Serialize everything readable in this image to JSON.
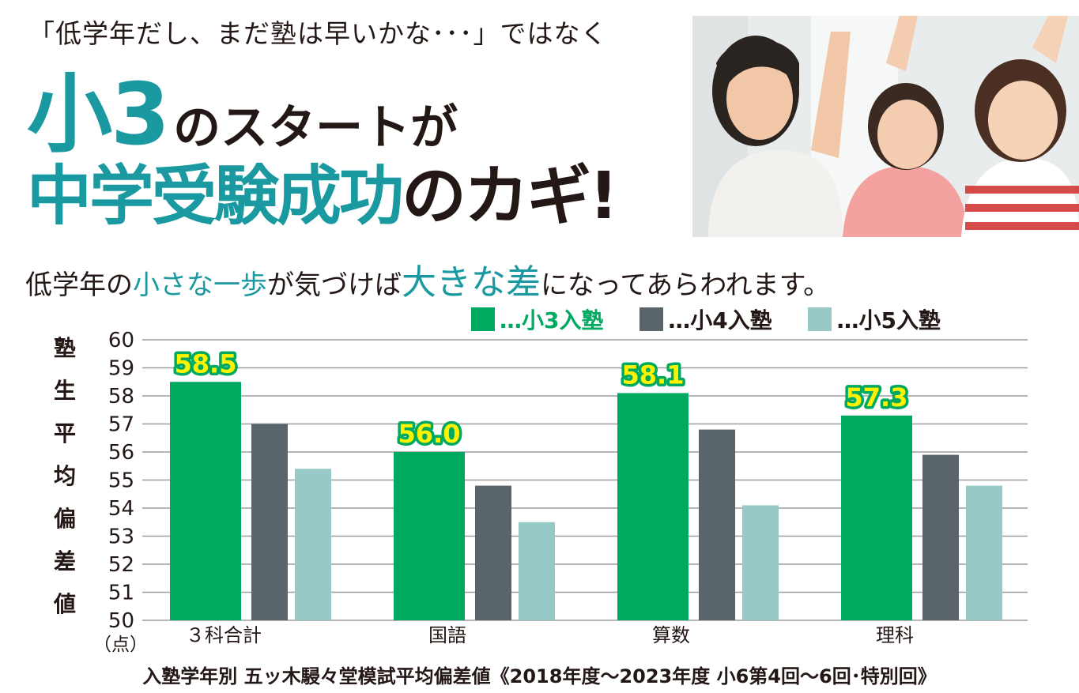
{
  "header": {
    "tagline": "「低学年だし、まだ塾は早いかな･･･」ではなく",
    "headline_line1_big": "小3",
    "headline_line1_rest": "のスタートが",
    "headline_line2_teal": "中学受験成功",
    "headline_line2_dark": "のカギ!",
    "sub_1": "低学年の",
    "sub_2": "小さな一歩",
    "sub_3": "が気づけば",
    "sub_4": "大きな差",
    "sub_5": "になってあらわれます。"
  },
  "colors": {
    "accent": "#1a9aa0",
    "series": [
      "#00a960",
      "#5a646b",
      "#97c9c6"
    ],
    "value_label_fill": "#fff200"
  },
  "legend": [
    {
      "label": "…小3入塾"
    },
    {
      "label": "…小4入塾"
    },
    {
      "label": "…小5入塾"
    }
  ],
  "chart_data": {
    "type": "bar",
    "ylabel": "塾生平均偏差値",
    "unit": "（点）",
    "categories": [
      "３科合計",
      "国語",
      "算数",
      "理科"
    ],
    "series": [
      {
        "name": "小3入塾",
        "values": [
          58.5,
          56.0,
          58.1,
          57.3
        ]
      },
      {
        "name": "小4入塾",
        "values": [
          57.0,
          54.8,
          56.8,
          55.9
        ]
      },
      {
        "name": "小5入塾",
        "values": [
          55.4,
          53.5,
          54.1,
          54.8
        ]
      }
    ],
    "data_labels": [
      "58.5",
      "56.0",
      "58.1",
      "57.3"
    ],
    "ylim": [
      50,
      60
    ],
    "yticks": [
      50,
      51,
      52,
      53,
      54,
      55,
      56,
      57,
      58,
      59,
      60
    ],
    "grid": true,
    "legend_position": "top-right"
  },
  "footer": "入塾学年別 五ッ木駸々堂模試平均偏差値《2018年度～2023年度 小6第4回～6回･特別回》"
}
